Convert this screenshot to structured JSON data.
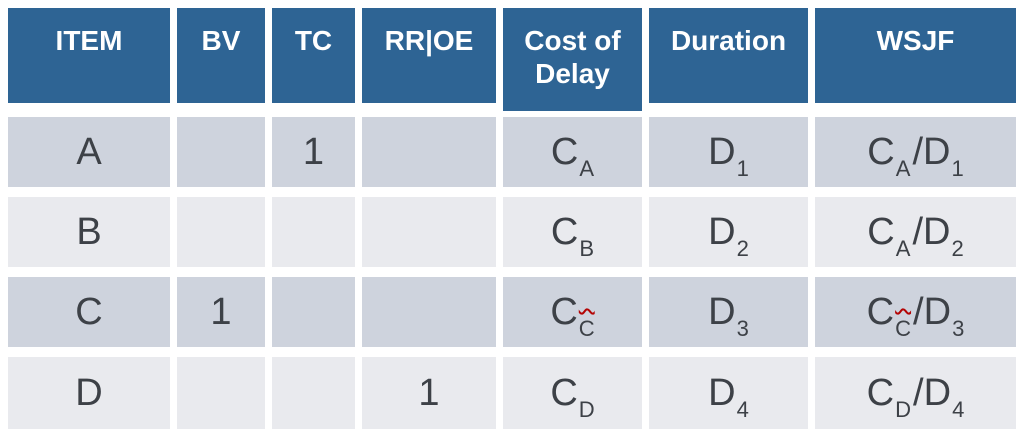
{
  "colors": {
    "header_bg": "#2E6494",
    "row_dark_bg": "#CED3DD",
    "row_light_bg": "#E9EAEE",
    "header_text": "#FFFFFF",
    "cell_text": "#3D4147",
    "spellcheck_squiggle": "#B40404",
    "page_bg": "#FFFFFF"
  },
  "table": {
    "headers": [
      "ITEM",
      "BV",
      "TC",
      "RR|OE",
      "Cost of Delay",
      "Duration",
      "WSJF"
    ],
    "rows": [
      {
        "item": "A",
        "bv": "",
        "tc": "1",
        "rroe": "",
        "cod": {
          "base": "C",
          "sub": "A"
        },
        "duration": {
          "base": "D",
          "sub": "1"
        },
        "wsjf": {
          "num_base": "C",
          "num_sub": "A",
          "slash": "/",
          "den_base": "D",
          "den_sub": "1"
        }
      },
      {
        "item": "B",
        "bv": "",
        "tc": "",
        "rroe": "",
        "cod": {
          "base": "C",
          "sub": "B"
        },
        "duration": {
          "base": "D",
          "sub": "2"
        },
        "wsjf": {
          "num_base": "C",
          "num_sub": "A",
          "slash": "/",
          "den_base": "D",
          "den_sub": "2"
        }
      },
      {
        "item": "C",
        "bv": "1",
        "tc": "",
        "rroe": "",
        "cod": {
          "base": "C",
          "sub": "C"
        },
        "duration": {
          "base": "D",
          "sub": "3"
        },
        "wsjf": {
          "num_base": "C",
          "num_sub": "C",
          "slash": "/",
          "den_base": "D",
          "den_sub": "3"
        }
      },
      {
        "item": "D",
        "bv": "",
        "tc": "",
        "rroe": "1",
        "cod": {
          "base": "C",
          "sub": "D"
        },
        "duration": {
          "base": "D",
          "sub": "4"
        },
        "wsjf": {
          "num_base": "C",
          "num_sub": "D",
          "slash": "/",
          "den_base": "D",
          "den_sub": "4"
        }
      }
    ]
  },
  "chart_data": {
    "type": "table",
    "title": "",
    "columns": [
      "ITEM",
      "BV",
      "TC",
      "RR|OE",
      "Cost of Delay",
      "Duration",
      "WSJF"
    ],
    "rows": [
      [
        "A",
        "",
        "1",
        "",
        "C_A",
        "D_1",
        "C_A/D_1"
      ],
      [
        "B",
        "",
        "",
        "",
        "C_B",
        "D_2",
        "C_A/D_2"
      ],
      [
        "C",
        "1",
        "",
        "",
        "C_C",
        "D_3",
        "C_C/D_3"
      ],
      [
        "D",
        "",
        "",
        "1",
        "C_D",
        "D_4",
        "C_D/D_4"
      ]
    ],
    "notes": "Subscript C in row C cells (Cost of Delay and WSJF) shows a red spell-check squiggle"
  }
}
